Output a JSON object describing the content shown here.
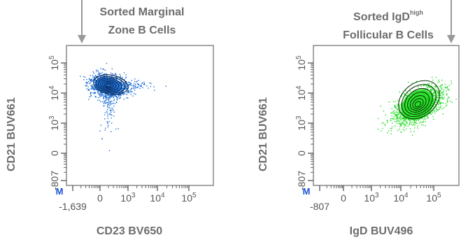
{
  "chart_data": [
    {
      "type": "scatter",
      "annotation_lines": [
        "Sorted Marginal",
        "Zone B Cells"
      ],
      "xlabel": "CD23 BV650",
      "ylabel": "CD21 BUV661",
      "x_ticks": [
        "-1,639",
        "0",
        "10^3",
        "10^4",
        "10^5"
      ],
      "y_ticks": [
        "-807",
        "0",
        "10^3",
        "10^4",
        "10^5"
      ],
      "marker_label": "M",
      "point_color": "#1f6fd6",
      "contour_color": "#0a2a55",
      "population_center": {
        "x": 1000,
        "y": 15000
      }
    },
    {
      "type": "scatter",
      "annotation_parts": {
        "prefix": "Sorted IgD",
        "sup": "high",
        "line2": "Follicular B Cells"
      },
      "xlabel": "IgD BUV496",
      "ylabel": "CD21 BUV661",
      "x_ticks": [
        "-807",
        "0",
        "10^3",
        "10^4",
        "10^5"
      ],
      "y_ticks": [
        "-807",
        "0",
        "10^3",
        "10^4",
        "10^5"
      ],
      "marker_label": "M",
      "point_color": "#22dd22",
      "contour_color": "#0a3a0a",
      "population_center": {
        "x": 15000,
        "y": 3000
      }
    }
  ],
  "colors": {
    "axis": "#555555",
    "arrow": "#999999",
    "caption": "#6d6d6d",
    "marker": "#1a4fd6"
  }
}
